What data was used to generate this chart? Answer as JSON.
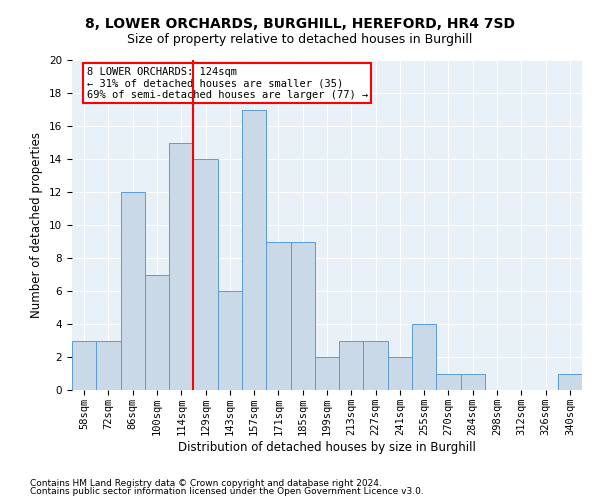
{
  "title1": "8, LOWER ORCHARDS, BURGHILL, HEREFORD, HR4 7SD",
  "title2": "Size of property relative to detached houses in Burghill",
  "xlabel": "Distribution of detached houses by size in Burghill",
  "ylabel": "Number of detached properties",
  "categories": [
    "58sqm",
    "72sqm",
    "86sqm",
    "100sqm",
    "114sqm",
    "129sqm",
    "143sqm",
    "157sqm",
    "171sqm",
    "185sqm",
    "199sqm",
    "213sqm",
    "227sqm",
    "241sqm",
    "255sqm",
    "270sqm",
    "284sqm",
    "298sqm",
    "312sqm",
    "326sqm",
    "340sqm"
  ],
  "values": [
    3,
    3,
    12,
    7,
    15,
    14,
    6,
    17,
    9,
    9,
    2,
    3,
    3,
    2,
    4,
    1,
    1,
    0,
    0,
    0,
    1
  ],
  "bar_color": "#c9d9e8",
  "bar_edge_color": "#5b9bd5",
  "red_line_index": 4.5,
  "annotation_text": "8 LOWER ORCHARDS: 124sqm\n← 31% of detached houses are smaller (35)\n69% of semi-detached houses are larger (77) →",
  "ylim": [
    0,
    20
  ],
  "yticks": [
    0,
    2,
    4,
    6,
    8,
    10,
    12,
    14,
    16,
    18,
    20
  ],
  "footer1": "Contains HM Land Registry data © Crown copyright and database right 2024.",
  "footer2": "Contains public sector information licensed under the Open Government Licence v3.0.",
  "background_color": "#e8f0f8",
  "grid_color": "white",
  "title1_fontsize": 10,
  "title2_fontsize": 9,
  "xlabel_fontsize": 8.5,
  "ylabel_fontsize": 8.5,
  "tick_fontsize": 7.5,
  "footer_fontsize": 6.5,
  "annot_fontsize": 7.5
}
